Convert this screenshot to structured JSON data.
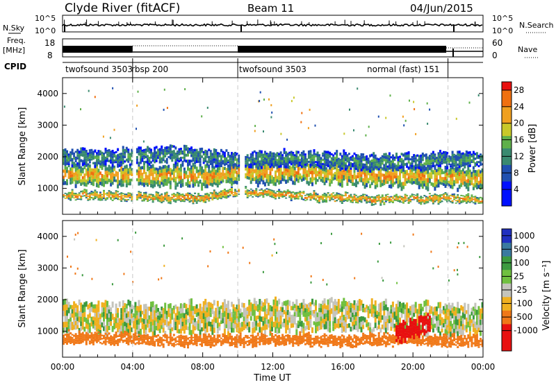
{
  "header": {
    "station": "Clyde River (fitACF)",
    "beam": "Beam 11",
    "date": "04/Jun/2015"
  },
  "sky_panel": {
    "left_label": "N.Sky",
    "right_label": "N.Search",
    "ticks_left": [
      "10^5",
      "10^0"
    ],
    "ticks_right": [
      "10^5",
      "10^0"
    ]
  },
  "freq_panel": {
    "left_label_1": "Freq.",
    "left_label_2": "[MHz]",
    "ticks_left": [
      "18",
      "8"
    ],
    "right_label": "Nave",
    "ticks_right": [
      "60",
      "0"
    ]
  },
  "cpid": {
    "label": "CPID",
    "segments": [
      {
        "name": "twofsound 3503",
        "start_hr": 0,
        "end_hr": 4
      },
      {
        "name": "rbsp 200",
        "start_hr": 4,
        "end_hr": 10
      },
      {
        "name": "twofsound 3503",
        "start_hr": 10,
        "end_hr": 22
      },
      {
        "name": "normal (fast) 151",
        "start_hr": 22,
        "end_hr": 24
      }
    ],
    "label_right_of": [
      {
        "text": "twofsound 3503"
      },
      {
        "text": "rbsp 200"
      },
      {
        "text": "twofsound 3503"
      },
      {
        "text": "normal (fast) 151"
      }
    ]
  },
  "power_panel": {
    "ylabel": "Slant Range [km]",
    "colorbar_label": "Power [dB]",
    "colorbar_ticks": [
      "4",
      "8",
      "12",
      "16",
      "20",
      "24",
      "28"
    ]
  },
  "velocity_panel": {
    "ylabel": "Slant Range [km]",
    "colorbar_label": "Velocity  [m s⁻¹]",
    "colorbar_ticks": [
      "1000",
      "500",
      "100",
      "25",
      "-25",
      "-100",
      "-500",
      "-1000"
    ]
  },
  "xaxis": {
    "xlabel": "Time UT",
    "ticks": [
      "00:00",
      "04:00",
      "08:00",
      "12:00",
      "16:00",
      "20:00",
      "00:00"
    ]
  },
  "chart_data": [
    {
      "type": "heatmap",
      "title": "Power",
      "xlabel": "Time UT",
      "ylabel": "Slant Range [km]",
      "xlim": [
        0,
        24
      ],
      "ylim": [
        180,
        4500
      ],
      "yticks": [
        1000,
        2000,
        3000,
        4000
      ],
      "colorbar": {
        "label": "Power [dB]",
        "range": [
          0,
          30
        ],
        "ticks": [
          4,
          8,
          12,
          16,
          20,
          24,
          28
        ]
      },
      "bands": [
        {
          "t": [
            0,
            4,
            6,
            8,
            10,
            14,
            18,
            22,
            24
          ],
          "center_km": [
            1450,
            1400,
            1400,
            1350,
            1500,
            1500,
            1400,
            1350,
            1300
          ],
          "half_width_km": 350,
          "power_db": 24
        },
        {
          "t": [
            0,
            4,
            6,
            8,
            10,
            14,
            18,
            22,
            24
          ],
          "center_km": [
            1950,
            2000,
            2100,
            2000,
            1900,
            1950,
            1800,
            1900,
            1900
          ],
          "half_width_km": 250,
          "power_db": 14
        },
        {
          "t": [
            0,
            4,
            6,
            8,
            10,
            14,
            18,
            22,
            24
          ],
          "center_km": [
            800,
            750,
            700,
            700,
            900,
            750,
            650,
            700,
            600
          ],
          "half_width_km": 130,
          "power_db": 26
        }
      ],
      "gaps_hr": [
        [
          4.0,
          4.2
        ],
        [
          10.0,
          10.3
        ]
      ]
    },
    {
      "type": "heatmap",
      "title": "Velocity",
      "xlabel": "Time UT",
      "ylabel": "Slant Range [km]",
      "xlim": [
        0,
        24
      ],
      "ylim": [
        180,
        4500
      ],
      "yticks": [
        1000,
        2000,
        3000,
        4000
      ],
      "colorbar": {
        "label": "Velocity [m s-1]",
        "ticks": [
          1000,
          500,
          100,
          25,
          -25,
          -100,
          -500,
          -1000
        ]
      },
      "bands": [
        {
          "t": [
            0,
            4,
            8,
            12,
            16,
            20,
            24
          ],
          "center_km": [
            1450,
            1400,
            1400,
            1500,
            1500,
            1400,
            1350
          ],
          "half_width_km": 500,
          "velocity_ms": 0
        },
        {
          "t": [
            0,
            4,
            8,
            12,
            16,
            20,
            24
          ],
          "center_km": [
            800,
            750,
            700,
            750,
            700,
            750,
            650
          ],
          "half_width_km": 180,
          "velocity_ms": -200
        },
        {
          "t": [
            19,
            20,
            21
          ],
          "center_km": [
            900,
            1100,
            1300
          ],
          "half_width_km": 300,
          "velocity_ms": -700
        }
      ]
    }
  ]
}
